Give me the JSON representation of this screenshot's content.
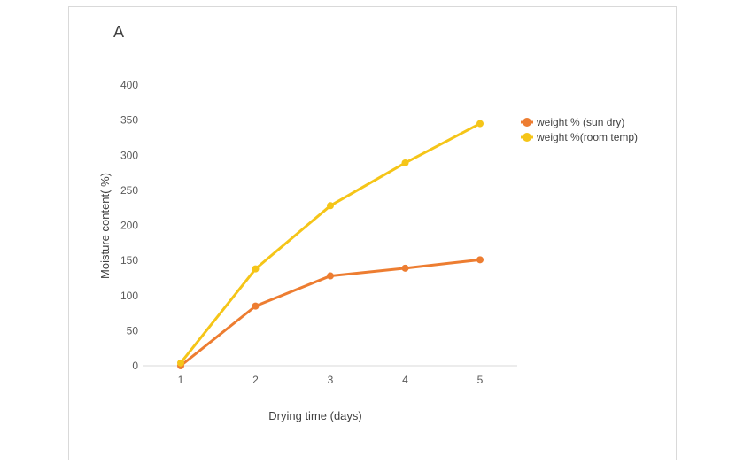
{
  "panel_label": "A",
  "chart_data": {
    "type": "line",
    "title": "",
    "xlabel": "Drying time  (days)",
    "ylabel": "Moisture content( %)",
    "x": [
      1,
      2,
      3,
      4,
      5
    ],
    "x_tick_labels": [
      "1",
      "2",
      "3",
      "4",
      "5"
    ],
    "ylim": [
      0,
      400
    ],
    "y_ticks": [
      0,
      50,
      100,
      150,
      200,
      250,
      300,
      350,
      400
    ],
    "grid": false,
    "legend_position": "right",
    "series": [
      {
        "name": "weight % (sun dry)",
        "color": "#ED7D31",
        "values": [
          0,
          85,
          128,
          139,
          151
        ]
      },
      {
        "name": "weight %(room temp)",
        "color": "#F5C518",
        "values": [
          4,
          138,
          228,
          289,
          345
        ]
      }
    ]
  }
}
